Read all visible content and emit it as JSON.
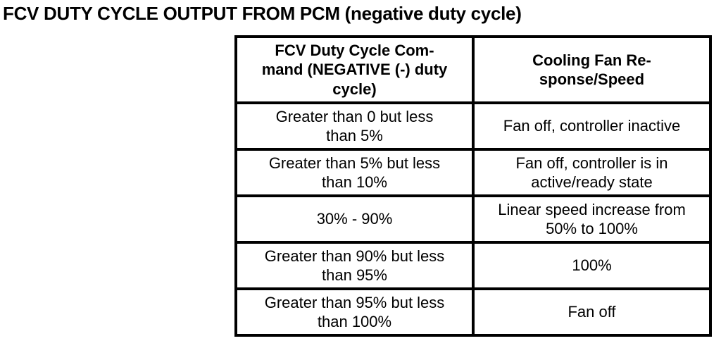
{
  "page": {
    "title": "FCV DUTY CYCLE OUTPUT FROM PCM (negative duty cycle)"
  },
  "table": {
    "headers": [
      "FCV Duty Cycle Com-\nmand (NEGATIVE (-) duty\ncycle)",
      "Cooling Fan Re-\nsponse/Speed"
    ],
    "rows": [
      {
        "cells": [
          "Greater than 0 but less\nthan 5%",
          "Fan off, controller inactive"
        ]
      },
      {
        "cells": [
          "Greater than 5% but less\nthan 10%",
          "Fan off, controller is in\nactive/ready state"
        ]
      },
      {
        "cells": [
          "30% - 90%",
          "Linear speed increase from\n50% to 100%"
        ]
      },
      {
        "cells": [
          "Greater than 90% but less\nthan 95%",
          "100%"
        ]
      },
      {
        "cells": [
          "Greater than 95% but less\nthan 100%",
          "Fan off"
        ]
      }
    ]
  }
}
